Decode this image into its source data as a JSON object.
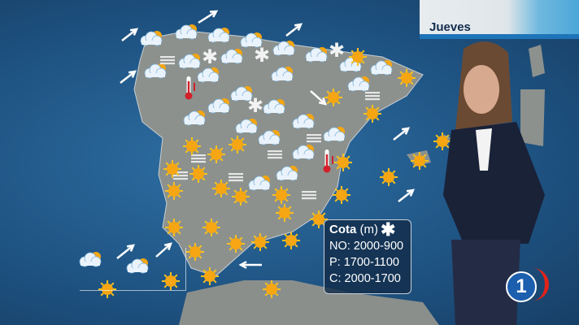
{
  "broadcast": {
    "day_label": "Jueves",
    "channel_logo": "1",
    "accent_color": "#1e74b8"
  },
  "snow_level_box": {
    "title": "Cota",
    "unit": "(m)",
    "icon": "snowflake-icon",
    "rows": [
      {
        "label": "NO: 2000-900"
      },
      {
        "label": "P: 1700-1100"
      },
      {
        "label": "C: 2000-1700"
      }
    ]
  },
  "legend_icons": [
    "sun-icon",
    "cloud-sun-icon",
    "cloud-rain-icon",
    "fog-icon",
    "snow-icon",
    "wind-arrow-icon",
    "thermometer-up-icon",
    "thermometer-down-icon"
  ],
  "colors": {
    "sea": "#1f5585",
    "land": "#8a8f8c",
    "sun": "#f5b31a",
    "cloud": "#eaf3fb"
  }
}
